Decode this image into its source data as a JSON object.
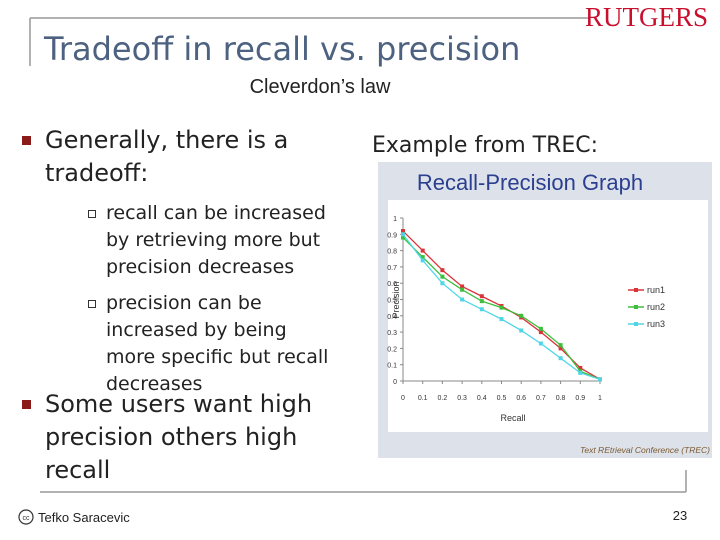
{
  "header": {
    "title": "Tradeoff in recall vs. precision",
    "logo": "RUTGERS",
    "subtitle": "Cleverdon’s law"
  },
  "bullets": [
    {
      "text": "Generally, there is a tradeoff:",
      "sub": [
        "recall can be increased by retrieving more but precision decreases",
        "precision can be increased by being more specific but recall decreases"
      ]
    },
    {
      "text": "Some users want high precision others high recall",
      "sub": []
    }
  ],
  "example_label": "Example from TREC:",
  "figure": {
    "type": "line",
    "title": "Recall-Precision Graph",
    "x_label": "Recall",
    "y_label": "Precision",
    "x": [
      0,
      0.1,
      0.2,
      0.3,
      0.4,
      0.5,
      0.6,
      0.7,
      0.8,
      0.9,
      1
    ],
    "series": [
      {
        "name": "run1",
        "color": "#d9343a",
        "values": [
          0.92,
          0.8,
          0.68,
          0.58,
          0.52,
          0.46,
          0.39,
          0.3,
          0.2,
          0.08,
          0.01
        ]
      },
      {
        "name": "run2",
        "color": "#3cbf3c",
        "values": [
          0.88,
          0.76,
          0.64,
          0.56,
          0.49,
          0.45,
          0.4,
          0.32,
          0.22,
          0.06,
          0.01
        ]
      },
      {
        "name": "run3",
        "color": "#4fd6e6",
        "values": [
          0.9,
          0.74,
          0.6,
          0.5,
          0.44,
          0.38,
          0.31,
          0.23,
          0.14,
          0.05,
          0.01
        ]
      }
    ],
    "xlim": [
      0,
      1
    ],
    "ylim": [
      0,
      1
    ],
    "xticks": [
      0,
      0.1,
      0.2,
      0.3,
      0.4,
      0.5,
      0.6,
      0.7,
      0.8,
      0.9,
      1
    ],
    "yticks": [
      0,
      0.1,
      0.2,
      0.3,
      0.4,
      0.5,
      0.6,
      0.7,
      0.8,
      0.9,
      1
    ],
    "caption": "Text REtrieval Conference (TREC)"
  },
  "footer": {
    "license_icon": "cc",
    "author": "Tefko Saracevic",
    "page": "23"
  }
}
